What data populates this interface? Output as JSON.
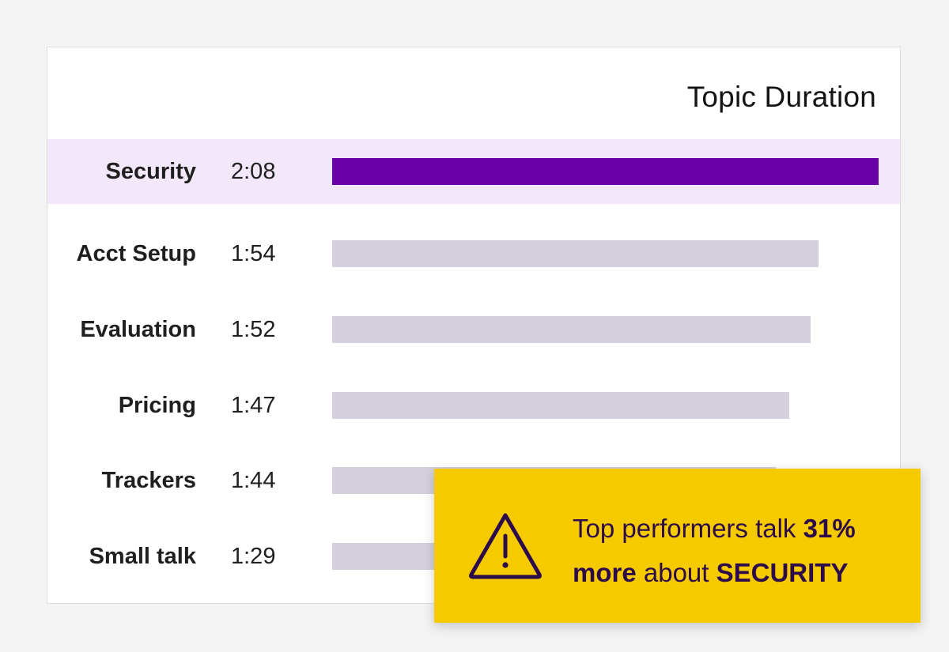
{
  "chart_data": {
    "type": "bar",
    "title": "Topic Duration",
    "orientation": "horizontal",
    "categories": [
      "Security",
      "Acct Setup",
      "Evaluation",
      "Pricing",
      "Trackers",
      "Small talk"
    ],
    "value_labels": [
      "2:08",
      "1:54",
      "1:52",
      "1:47",
      "1:44",
      "1:29"
    ],
    "values": [
      128,
      114,
      112,
      107,
      104,
      89
    ],
    "value_unit": "seconds",
    "highlighted_category": "Security",
    "colors": {
      "highlight_bar": "#6a00a8",
      "highlight_band": "#f3e8fa",
      "default_bar": "#d6d0de"
    }
  },
  "callout": {
    "icon": "warning-icon",
    "text_part1": "Top performers talk ",
    "text_bold1": "31% more",
    "text_part2": " about ",
    "text_bold2": "SECURITY",
    "background_color": "#f5cb00",
    "text_color": "#2d0a4a"
  }
}
